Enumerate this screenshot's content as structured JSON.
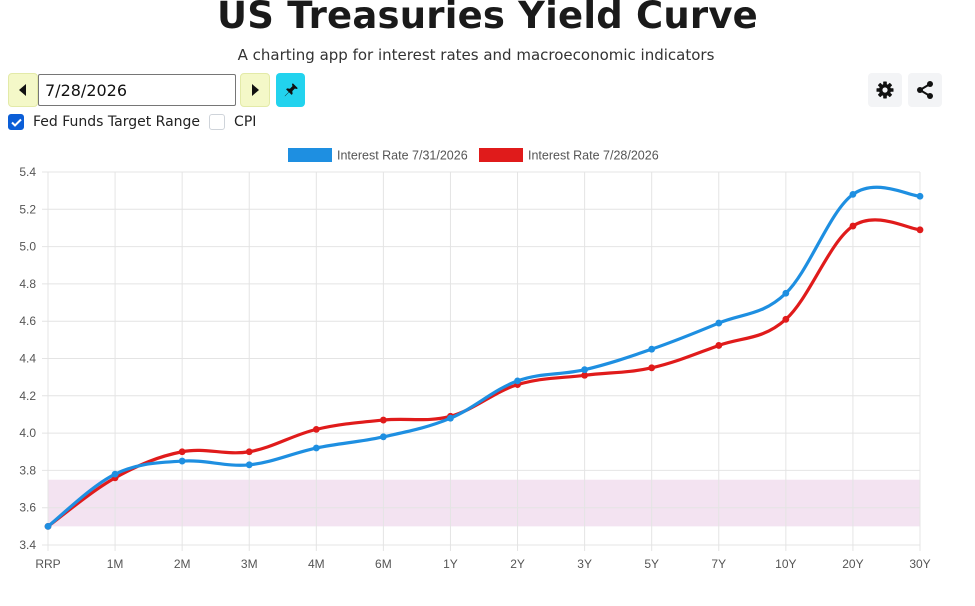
{
  "header": {
    "title": "US Treasuries Yield Curve",
    "subtitle": "A charting app for interest rates and macroeconomic indicators"
  },
  "toolbar": {
    "prev_icon": "caret-left-icon",
    "next_icon": "caret-right-icon",
    "pin_icon": "pin-icon",
    "settings_icon": "gear-icon",
    "share_icon": "share-icon",
    "date_value": "7/28/2026"
  },
  "options": {
    "fed_funds_label": "Fed Funds Target Range",
    "fed_funds_checked": true,
    "cpi_label": "CPI",
    "cpi_checked": false
  },
  "chart_data": {
    "type": "line",
    "categories": [
      "RRP",
      "1M",
      "2M",
      "3M",
      "4M",
      "6M",
      "1Y",
      "2Y",
      "3Y",
      "5Y",
      "7Y",
      "10Y",
      "20Y",
      "30Y"
    ],
    "series": [
      {
        "name": "Interest Rate 7/31/2026",
        "color": "#1e8fe1",
        "values": [
          3.5,
          3.78,
          3.85,
          3.83,
          3.92,
          3.98,
          4.08,
          4.28,
          4.34,
          4.45,
          4.59,
          4.75,
          5.28,
          5.27
        ]
      },
      {
        "name": "Interest Rate 7/28/2026",
        "color": "#e01b1b",
        "values": [
          3.5,
          3.76,
          3.9,
          3.9,
          4.02,
          4.07,
          4.09,
          4.26,
          4.31,
          4.35,
          4.47,
          4.61,
          5.11,
          5.09
        ]
      }
    ],
    "band": {
      "label": "Fed Funds Target Range",
      "low": 3.5,
      "high": 3.75,
      "color": "#f3e3f1"
    },
    "yticks": [
      "3.4",
      "3.6",
      "3.8",
      "4.0",
      "4.2",
      "4.4",
      "4.6",
      "4.8",
      "5.0",
      "5.2",
      "5.4"
    ],
    "ylim": [
      3.4,
      5.4
    ],
    "grid": true,
    "legend_position": "top-center",
    "title": "",
    "xlabel": "",
    "ylabel": ""
  }
}
